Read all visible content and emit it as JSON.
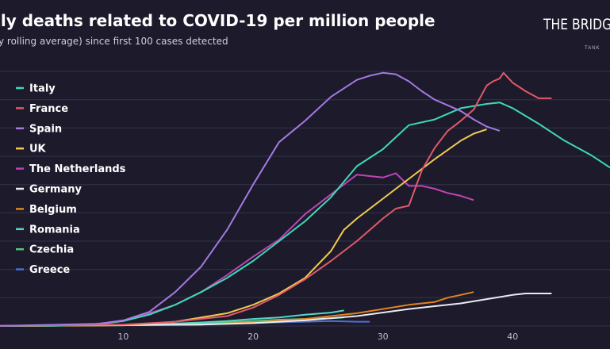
{
  "header": {
    "title": "ily deaths related to COVID-19 per million people",
    "subtitle": "y rolling average) since first 100 cases detected"
  },
  "logo": {
    "text": "THE BRIDGE",
    "sub": "TANK"
  },
  "chart_data": {
    "type": "line",
    "title": "ily deaths related to COVID-19 per million people",
    "subtitle": "y rolling average) since first 100 cases detected",
    "xlabel": "",
    "ylabel": "",
    "x_ticks": [
      10,
      20,
      30,
      40
    ],
    "xlim": [
      0.5,
      47.5
    ],
    "ylim": [
      0,
      18
    ],
    "grid": "horizontal",
    "legend_position": "left",
    "series": [
      {
        "name": "Italy",
        "color": "#3fd9b4",
        "x": [
          0,
          5,
          8,
          10,
          12,
          14,
          16,
          18,
          20,
          22,
          24,
          26,
          28,
          30,
          32,
          34,
          36,
          38,
          39,
          40,
          42,
          44,
          46,
          47.5
        ],
        "y": [
          0,
          0.02,
          0.15,
          0.35,
          0.8,
          1.5,
          2.4,
          3.4,
          4.6,
          6.0,
          7.4,
          9.1,
          11.3,
          12.5,
          14.2,
          14.6,
          15.4,
          15.7,
          15.8,
          15.4,
          14.3,
          13.1,
          12.1,
          11.2
        ]
      },
      {
        "name": "France",
        "color": "#e05a68",
        "x": [
          0,
          10,
          14,
          18,
          20,
          22,
          24,
          26,
          28,
          30,
          31,
          32,
          33,
          34,
          35,
          36,
          37,
          38,
          38.5,
          39,
          39.3,
          40,
          40.5,
          41,
          42,
          43
        ],
        "y": [
          0,
          0.1,
          0.3,
          0.7,
          1.3,
          2.2,
          3.3,
          4.6,
          6.0,
          7.6,
          8.3,
          8.5,
          11.0,
          12.6,
          13.8,
          14.5,
          15.3,
          17.0,
          17.3,
          17.5,
          17.9,
          17.2,
          16.9,
          16.6,
          16.1,
          16.1
        ]
      },
      {
        "name": "Spain",
        "color": "#a47ae0",
        "x": [
          0,
          8,
          10,
          12,
          14,
          16,
          18,
          20,
          22,
          24,
          26,
          28,
          29,
          30,
          31,
          32,
          33,
          34,
          35,
          36,
          37,
          38,
          39
        ],
        "y": [
          0,
          0.15,
          0.4,
          1.0,
          2.4,
          4.2,
          6.8,
          10.0,
          13.0,
          14.5,
          16.2,
          17.4,
          17.7,
          17.9,
          17.8,
          17.3,
          16.6,
          16.0,
          15.6,
          15.2,
          14.6,
          14.1,
          13.8
        ]
      },
      {
        "name": "UK",
        "color": "#f1cb4f",
        "x": [
          0,
          10,
          14,
          18,
          20,
          22,
          24,
          26,
          27,
          28,
          30,
          32,
          34,
          36,
          37,
          38
        ],
        "y": [
          0,
          0.05,
          0.3,
          0.9,
          1.5,
          2.3,
          3.4,
          5.3,
          6.8,
          7.6,
          9.0,
          10.4,
          11.8,
          13.1,
          13.6,
          13.9
        ]
      },
      {
        "name": "The Netherlands",
        "color": "#bd45b4",
        "x": [
          0,
          8,
          10,
          12,
          14,
          16,
          18,
          20,
          22,
          24,
          26,
          28,
          29,
          30,
          31,
          32,
          33,
          34,
          35,
          36,
          37
        ],
        "y": [
          0,
          0.1,
          0.35,
          0.9,
          1.5,
          2.4,
          3.6,
          4.9,
          6.1,
          7.9,
          9.3,
          10.7,
          10.6,
          10.5,
          10.8,
          9.9,
          9.9,
          9.7,
          9.4,
          9.2,
          8.9
        ]
      },
      {
        "name": "Germany",
        "color": "#ecebf2",
        "x": [
          0,
          16,
          20,
          24,
          28,
          32,
          34,
          36,
          38,
          40,
          41,
          42,
          43
        ],
        "y": [
          0,
          0.1,
          0.2,
          0.4,
          0.7,
          1.2,
          1.4,
          1.6,
          1.9,
          2.2,
          2.3,
          2.3,
          2.3
        ]
      },
      {
        "name": "Belgium",
        "color": "#e0841f",
        "x": [
          0,
          16,
          20,
          24,
          28,
          32,
          34,
          35,
          36,
          37
        ],
        "y": [
          0,
          0.1,
          0.25,
          0.5,
          0.9,
          1.5,
          1.7,
          2.0,
          2.2,
          2.4
        ]
      },
      {
        "name": "Romania",
        "color": "#58d4c8",
        "x": [
          0,
          12,
          16,
          18,
          20,
          22,
          24,
          26,
          27
        ],
        "y": [
          0,
          0.1,
          0.25,
          0.35,
          0.5,
          0.6,
          0.8,
          0.95,
          1.1
        ]
      },
      {
        "name": "Czechia",
        "color": "#57c77a",
        "x": [
          0,
          10,
          14,
          18,
          20,
          22,
          24,
          26,
          27
        ],
        "y": [
          0,
          0.05,
          0.15,
          0.25,
          0.35,
          0.45,
          0.5,
          0.55,
          0.6
        ]
      },
      {
        "name": "Greece",
        "color": "#4e6fd8",
        "x": [
          0,
          8,
          12,
          16,
          20,
          24,
          26,
          28,
          29
        ],
        "y": [
          0,
          0.05,
          0.1,
          0.15,
          0.2,
          0.3,
          0.35,
          0.3,
          0.3
        ]
      }
    ]
  }
}
